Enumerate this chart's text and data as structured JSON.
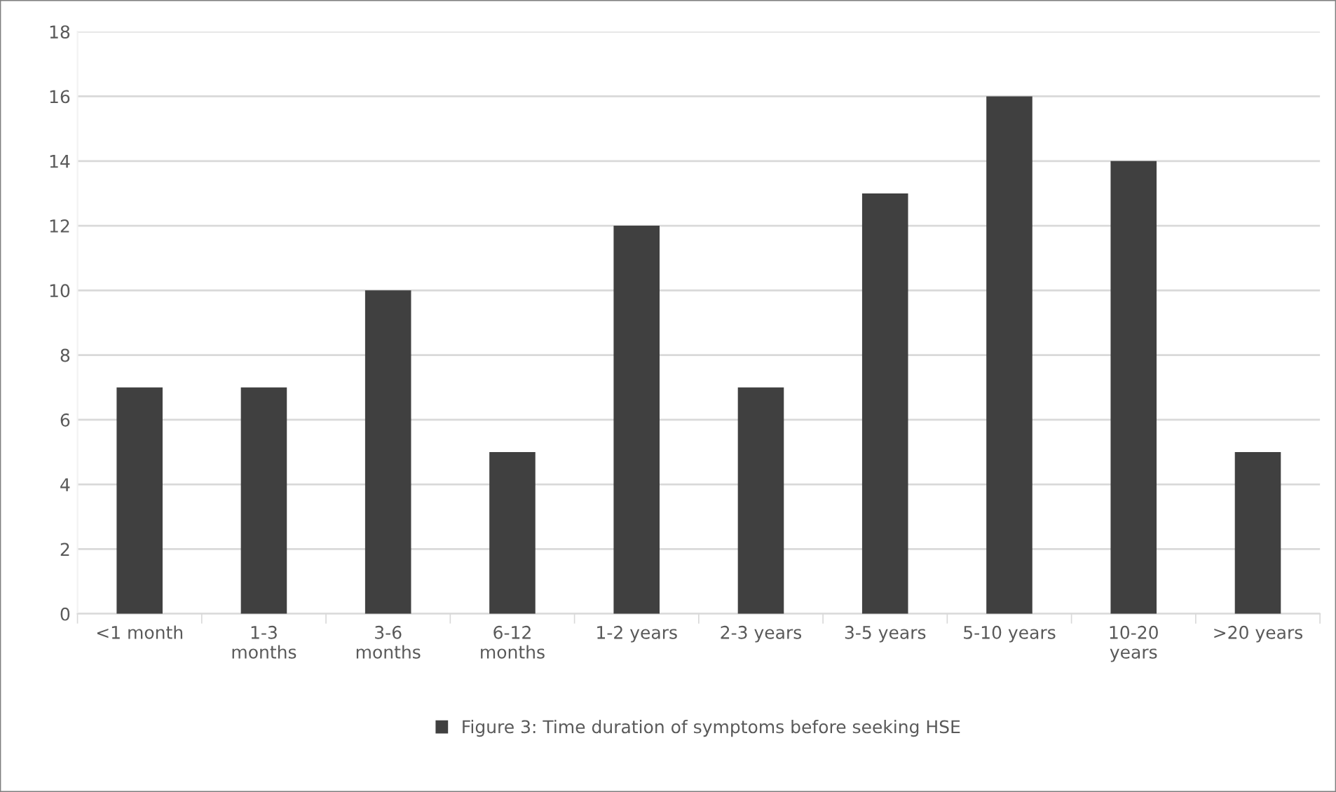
{
  "chart_data": {
    "type": "bar",
    "categories": [
      "<1 month",
      "1-3\nmonths",
      "3-6\nmonths",
      "6-12\nmonths",
      "1-2 years",
      "2-3 years",
      "3-5 years",
      "5-10 years",
      "10-20\nyears",
      ">20 years"
    ],
    "series": [
      {
        "name": "Figure 3: Time duration of symptoms before seeking HSE",
        "color": "#404040",
        "values": [
          7,
          7,
          10,
          5,
          12,
          7,
          13,
          16,
          14,
          5
        ]
      }
    ],
    "ylim": [
      0,
      18
    ],
    "yticks": [
      0,
      2,
      4,
      6,
      8,
      10,
      12,
      14,
      16,
      18
    ],
    "grid": "y",
    "legend": "bottom"
  }
}
